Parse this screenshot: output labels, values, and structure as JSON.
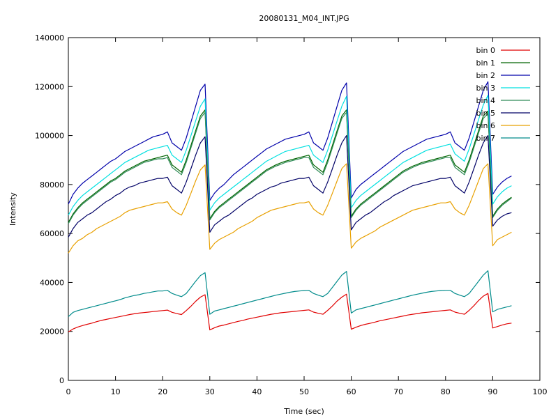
{
  "chart_data": {
    "type": "line",
    "title": "20080131_M04_INT.JPG",
    "xlabel": "Time (sec)",
    "ylabel": "Intensity",
    "xlim": [
      0,
      100
    ],
    "ylim": [
      0,
      140000
    ],
    "xticks": [
      0,
      10,
      20,
      30,
      40,
      50,
      60,
      70,
      80,
      90,
      100
    ],
    "yticks": [
      0,
      20000,
      40000,
      60000,
      80000,
      100000,
      120000,
      140000
    ],
    "grid": false,
    "legend_position": "top-right",
    "x": [
      0,
      1,
      2,
      3,
      4,
      5,
      6,
      7,
      8,
      9,
      10,
      11,
      12,
      13,
      14,
      15,
      16,
      17,
      18,
      19,
      20,
      21,
      22,
      23,
      24,
      25,
      26,
      27,
      28,
      29,
      30,
      31,
      32,
      33,
      34,
      35,
      36,
      37,
      38,
      39,
      40,
      41,
      42,
      43,
      44,
      45,
      46,
      47,
      48,
      49,
      50,
      51,
      52,
      53,
      54,
      55,
      56,
      57,
      58,
      59,
      60,
      61,
      62,
      63,
      64,
      65,
      66,
      67,
      68,
      69,
      70,
      71,
      72,
      73,
      74,
      75,
      76,
      77,
      78,
      79,
      80,
      81,
      82,
      83,
      84,
      85,
      86,
      87,
      88,
      89,
      90,
      91,
      92,
      93,
      94
    ],
    "series": [
      {
        "name": "bin 0",
        "color": "#e00000",
        "values": [
          19800,
          21000,
          21800,
          22400,
          22900,
          23400,
          24000,
          24500,
          24900,
          25300,
          25700,
          26100,
          26500,
          26900,
          27200,
          27500,
          27700,
          27900,
          28100,
          28300,
          28500,
          28700,
          27800,
          27300,
          26900,
          28500,
          30300,
          32300,
          34000,
          35000,
          20600,
          21500,
          22200,
          22600,
          23100,
          23600,
          24100,
          24500,
          25000,
          25400,
          25800,
          26200,
          26600,
          27000,
          27300,
          27600,
          27800,
          28000,
          28200,
          28400,
          28600,
          28800,
          27900,
          27400,
          27000,
          28600,
          30400,
          32400,
          34000,
          35200,
          20900,
          21700,
          22400,
          22900,
          23300,
          23800,
          24300,
          24700,
          25100,
          25500,
          25900,
          26300,
          26700,
          27000,
          27300,
          27600,
          27800,
          28000,
          28200,
          28400,
          28600,
          28800,
          27900,
          27400,
          27000,
          28600,
          30500,
          32600,
          34400,
          35500,
          21400,
          22000,
          22600,
          23100,
          23400
        ]
      },
      {
        "name": "bin 1",
        "color": "#006400",
        "values": [
          64500,
          68000,
          70500,
          72500,
          74000,
          75500,
          77000,
          78500,
          80000,
          81500,
          82500,
          84000,
          85500,
          86500,
          87500,
          88500,
          89500,
          90000,
          90500,
          91000,
          91500,
          92000,
          88000,
          86500,
          85000,
          90000,
          96000,
          102000,
          108000,
          110500,
          66000,
          69000,
          71000,
          72500,
          74000,
          75500,
          77000,
          78500,
          80000,
          81500,
          83000,
          84500,
          86000,
          87000,
          88000,
          88800,
          89500,
          90000,
          90500,
          91000,
          91500,
          92000,
          88000,
          86500,
          85000,
          90000,
          96000,
          102000,
          108000,
          110500,
          67000,
          70000,
          72000,
          73500,
          75000,
          76500,
          78000,
          79500,
          81000,
          82500,
          84000,
          85500,
          86500,
          87500,
          88200,
          89000,
          89500,
          90000,
          90500,
          91000,
          91500,
          92000,
          88000,
          86500,
          85000,
          90000,
          96000,
          102000,
          108000,
          110000,
          67000,
          70000,
          72000,
          73500,
          74800
        ]
      },
      {
        "name": "bin 2",
        "color": "#0000aa",
        "values": [
          72000,
          76000,
          78500,
          80500,
          82000,
          83500,
          85000,
          86500,
          88000,
          89500,
          90500,
          92000,
          93500,
          94500,
          95500,
          96500,
          97500,
          98500,
          99500,
          100000,
          100500,
          101500,
          97000,
          95500,
          94000,
          99000,
          105500,
          112000,
          118500,
          121000,
          73500,
          76500,
          78500,
          80000,
          82000,
          84000,
          85500,
          87000,
          88500,
          90000,
          91500,
          93000,
          94500,
          95500,
          96500,
          97500,
          98500,
          99000,
          99500,
          100000,
          100500,
          101500,
          97000,
          95500,
          94000,
          99000,
          105500,
          112000,
          118500,
          121500,
          74500,
          78000,
          80000,
          81500,
          83000,
          84500,
          86000,
          87500,
          89000,
          90500,
          92000,
          93500,
          94500,
          95500,
          96500,
          97500,
          98500,
          99000,
          99500,
          100000,
          100500,
          101500,
          97000,
          95500,
          94000,
          99000,
          105500,
          112000,
          118500,
          122000,
          76000,
          79000,
          81000,
          82500,
          83500
        ]
      },
      {
        "name": "bin 3",
        "color": "#00e0e0",
        "values": [
          67500,
          71000,
          73500,
          75500,
          77000,
          78500,
          80000,
          81500,
          83000,
          84500,
          86000,
          87500,
          89000,
          90000,
          91000,
          92000,
          93000,
          94000,
          94500,
          95000,
          95500,
          96000,
          92000,
          90500,
          89000,
          94000,
          100000,
          106000,
          112000,
          115000,
          69500,
          72500,
          74500,
          76000,
          77500,
          79000,
          80500,
          82000,
          83500,
          85000,
          86500,
          88000,
          89500,
          90500,
          91500,
          92500,
          93500,
          94000,
          94500,
          95000,
          95500,
          96000,
          92000,
          90500,
          89000,
          94000,
          100000,
          106000,
          112000,
          116000,
          70500,
          73500,
          75500,
          77000,
          78500,
          80000,
          81500,
          83000,
          84500,
          86000,
          87500,
          89000,
          90000,
          91000,
          92000,
          93000,
          94000,
          94500,
          95000,
          95500,
          96000,
          96500,
          92500,
          91000,
          89500,
          94500,
          100500,
          106500,
          112500,
          116500,
          72000,
          75000,
          77000,
          78500,
          79500
        ]
      },
      {
        "name": "bin 4",
        "color": "#2e8b57",
        "values": [
          64000,
          67500,
          70000,
          72000,
          73500,
          75000,
          76500,
          78000,
          79500,
          81000,
          82000,
          83500,
          85000,
          86000,
          87000,
          88000,
          89000,
          89500,
          90000,
          90500,
          90500,
          91000,
          87000,
          85500,
          84000,
          89000,
          95000,
          101000,
          107000,
          109500,
          65500,
          68500,
          70500,
          72000,
          73500,
          75000,
          76500,
          78000,
          79500,
          81000,
          82500,
          84000,
          85500,
          86500,
          87500,
          88200,
          89000,
          89500,
          90000,
          90500,
          91000,
          91000,
          87000,
          85500,
          84000,
          89000,
          95000,
          101000,
          107000,
          109500,
          66500,
          69500,
          71500,
          73000,
          74500,
          76000,
          77500,
          79000,
          80500,
          82000,
          83500,
          85000,
          86000,
          87000,
          87800,
          88500,
          89000,
          89500,
          90000,
          90500,
          91000,
          91000,
          87000,
          85500,
          84000,
          89000,
          95000,
          101000,
          107000,
          109000,
          66500,
          69500,
          71500,
          73000,
          74500
        ]
      },
      {
        "name": "bin 5",
        "color": "#000066",
        "values": [
          58500,
          62000,
          64500,
          66000,
          67500,
          68500,
          70000,
          71500,
          73000,
          74000,
          75500,
          76500,
          78000,
          79000,
          79500,
          80500,
          81000,
          81500,
          82000,
          82500,
          82500,
          83000,
          79500,
          78000,
          76500,
          81000,
          86500,
          92000,
          97000,
          99500,
          60500,
          63500,
          65000,
          66500,
          67500,
          69000,
          70500,
          72000,
          73500,
          74500,
          76000,
          77000,
          78000,
          79000,
          79500,
          80500,
          81000,
          81500,
          82000,
          82500,
          82500,
          83000,
          79500,
          78000,
          76500,
          81000,
          86500,
          92000,
          97000,
          100000,
          61500,
          64500,
          66000,
          67500,
          68500,
          70000,
          71500,
          73000,
          74000,
          75500,
          76500,
          77500,
          78500,
          79500,
          80000,
          80500,
          81000,
          81500,
          82000,
          82500,
          82500,
          83000,
          79500,
          78000,
          76500,
          81000,
          86500,
          92000,
          97000,
          100000,
          63000,
          65500,
          67000,
          68000,
          68500
        ]
      },
      {
        "name": "bin 6",
        "color": "#e8a000",
        "values": [
          52000,
          55000,
          57000,
          58000,
          59500,
          60500,
          62000,
          63000,
          64000,
          65000,
          66000,
          67000,
          68500,
          69500,
          70000,
          70500,
          71000,
          71500,
          72000,
          72500,
          72500,
          73000,
          70000,
          68500,
          67500,
          71500,
          76500,
          81500,
          86000,
          88000,
          53500,
          56000,
          57500,
          58500,
          59500,
          60500,
          62000,
          63000,
          64000,
          65000,
          66500,
          67500,
          68500,
          69500,
          70000,
          70500,
          71000,
          71500,
          72000,
          72500,
          72500,
          73000,
          70000,
          68500,
          67500,
          71500,
          76500,
          81500,
          86500,
          88500,
          54000,
          56500,
          58000,
          59000,
          60000,
          61000,
          62500,
          63500,
          64500,
          65500,
          66500,
          67500,
          68500,
          69500,
          70000,
          70500,
          71000,
          71500,
          72000,
          72500,
          72500,
          73000,
          70000,
          68500,
          67500,
          71500,
          76500,
          81500,
          86500,
          88500,
          55000,
          57500,
          58500,
          59500,
          60500
        ]
      },
      {
        "name": "bin 7",
        "color": "#008b8b",
        "values": [
          26000,
          27800,
          28500,
          29000,
          29500,
          30000,
          30500,
          31000,
          31500,
          32000,
          32500,
          33000,
          33700,
          34200,
          34700,
          35000,
          35500,
          35800,
          36200,
          36500,
          36500,
          36800,
          35500,
          34800,
          34200,
          35500,
          38000,
          40500,
          42800,
          44000,
          27000,
          28300,
          28800,
          29300,
          29800,
          30300,
          30800,
          31300,
          31800,
          32300,
          32800,
          33300,
          33800,
          34300,
          34800,
          35200,
          35600,
          36000,
          36300,
          36500,
          36700,
          36800,
          35500,
          34800,
          34200,
          35500,
          38000,
          40500,
          43000,
          44500,
          27500,
          28800,
          29300,
          29800,
          30300,
          30800,
          31300,
          31800,
          32300,
          32800,
          33300,
          33800,
          34300,
          34800,
          35200,
          35600,
          36000,
          36300,
          36500,
          36700,
          36800,
          36800,
          35500,
          34800,
          34200,
          35500,
          38000,
          40500,
          43000,
          44800,
          28000,
          29000,
          29500,
          30000,
          30500
        ]
      }
    ]
  }
}
